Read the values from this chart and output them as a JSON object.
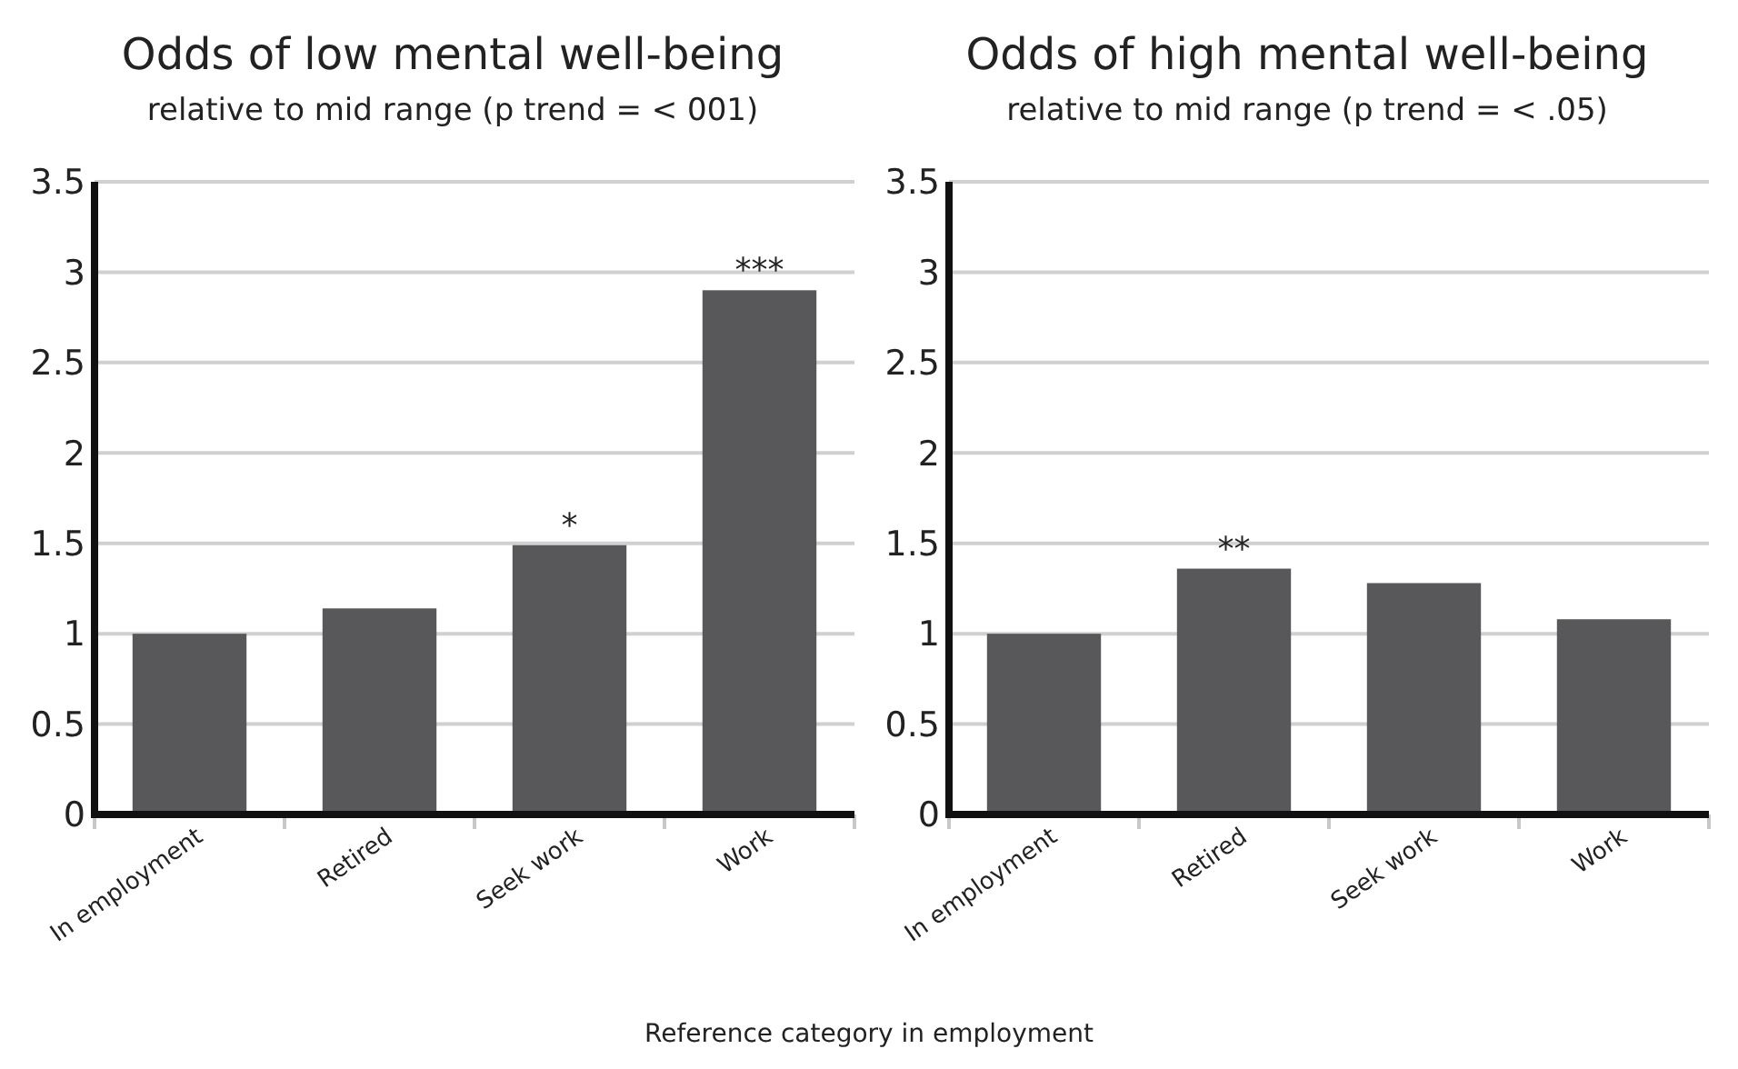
{
  "chart_data": [
    {
      "type": "bar",
      "title": "Odds of low mental well-being",
      "subtitle": "relative to mid range (p trend = < 001)",
      "xlabel": "Reference category in employment",
      "categories": [
        "In employment",
        "Retired",
        "Seek work",
        "Work"
      ],
      "values": [
        1.0,
        1.14,
        1.49,
        2.9
      ],
      "color": "#58585a",
      "ylim": [
        0,
        3.5
      ],
      "yticks": [
        0,
        0.5,
        1,
        1.5,
        2,
        2.5,
        3,
        3.5
      ],
      "grid": "y",
      "annotations": [
        {
          "text": "*",
          "x": "Seek work",
          "y": 1.49
        },
        {
          "text": "***",
          "x": "Work",
          "y": 2.9
        }
      ]
    },
    {
      "type": "bar",
      "title": "Odds of high mental well-being",
      "subtitle": "relative to mid range (p trend = < .05)",
      "categories": [
        "In employment",
        "Retired",
        "Seek work",
        "Work"
      ],
      "values": [
        1.0,
        1.36,
        1.28,
        1.08
      ],
      "color": "#58585a",
      "ylim": [
        0,
        3.5
      ],
      "yticks": [
        0,
        0.5,
        1,
        1.5,
        2,
        2.5,
        3,
        3.5
      ],
      "grid": "y",
      "annotations": [
        {
          "text": "**",
          "x": "Retired",
          "y": 1.36
        }
      ]
    }
  ]
}
